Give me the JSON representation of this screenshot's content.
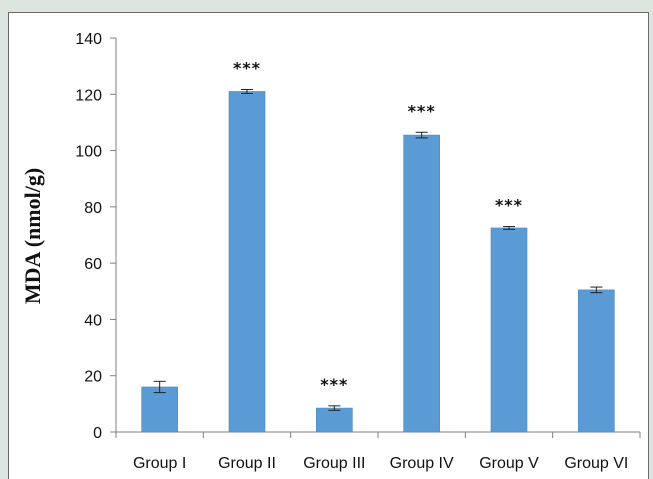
{
  "chart_data": {
    "type": "bar",
    "title": "",
    "xlabel": "",
    "ylabel": "MDA (nmol/g)",
    "ylim": [
      0,
      140
    ],
    "yticks": [
      0,
      20,
      40,
      60,
      80,
      100,
      120,
      140
    ],
    "categories": [
      "Group I",
      "Group II",
      "Group III",
      "Group IV",
      "Group V",
      "Group VI"
    ],
    "values": [
      16,
      121,
      8.5,
      105.5,
      72.5,
      50.5
    ],
    "errors": [
      2,
      0.7,
      0.8,
      1,
      0.5,
      1
    ],
    "annotations": [
      "",
      "***",
      "***",
      "***",
      "***",
      ""
    ],
    "grid": false,
    "bar_color": "#5b9bd5"
  }
}
